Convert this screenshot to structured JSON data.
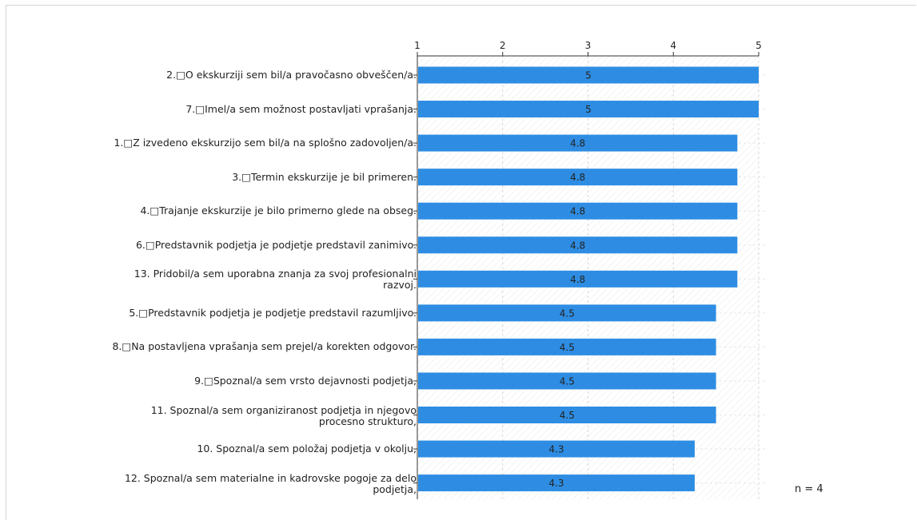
{
  "chart_data": {
    "type": "bar",
    "orientation": "horizontal",
    "categories": [
      "2.□O ekskurziji sem bil/a pravočasno obveščen/a.",
      "7.□Imel/a sem možnost postavljati vprašanja.",
      "1.□Z izvedeno ekskurzijo sem bil/a na splošno zadovoljen/a.",
      "3.□Termin ekskurzije je bil primeren.",
      "4.□Trajanje ekskurzije je bilo primerno glede na obseg.",
      "6.□Predstavnik podjetja je podjetje predstavil zanimivo.",
      "13. Pridobil/a sem uporabna znanja za svoj profesionalni\nrazvoj.",
      "5.□Predstavnik podjetja je podjetje predstavil razumljivo.",
      "8.□Na postavljena vprašanja sem prejel/a korekten odgovor.",
      "9.□Spoznal/a sem vrsto dejavnosti podjetja,",
      "11. Spoznal/a sem organiziranost podjetja in njegovo\nprocesno strukturo,",
      "10. Spoznal/a sem položaj podjetja v okolju,",
      "12. Spoznal/a sem materialne in kadrovske pogoje za delo\npodjetja,"
    ],
    "values": [
      5,
      5,
      4.75,
      4.75,
      4.75,
      4.75,
      4.75,
      4.5,
      4.5,
      4.5,
      4.5,
      4.25,
      4.25
    ],
    "value_labels": [
      "5",
      "5",
      "4.8",
      "4.8",
      "4.8",
      "4.8",
      "4.8",
      "4.5",
      "4.5",
      "4.5",
      "4.5",
      "4.3",
      "4.3"
    ],
    "xlim": [
      1,
      5
    ],
    "ticks": [
      "1",
      "2",
      "3",
      "4",
      "5"
    ],
    "axis_position": "top",
    "grid": true,
    "bar_color": "#2e8de3"
  },
  "note": "n = 4"
}
